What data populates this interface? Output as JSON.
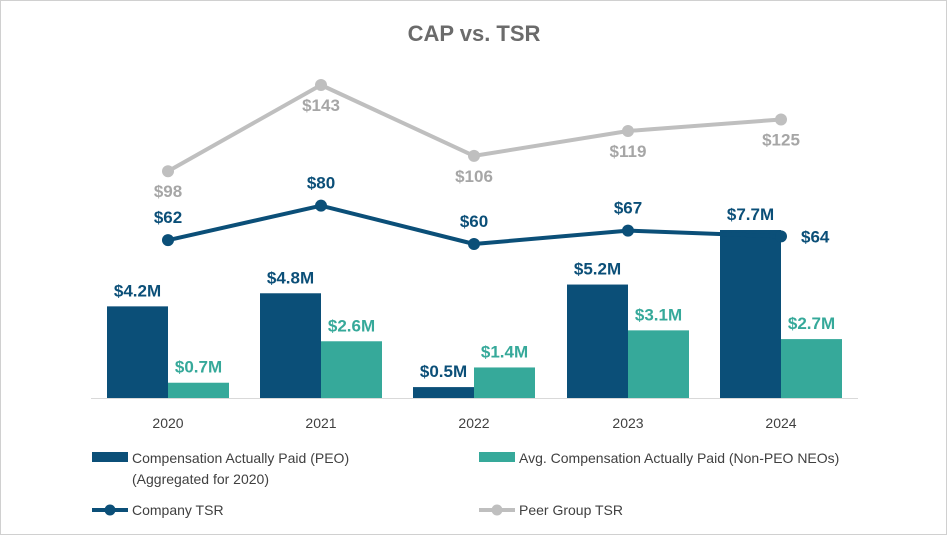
{
  "chart_data": {
    "type": "bar",
    "title": "CAP vs. TSR",
    "categories": [
      "2020",
      "2021",
      "2022",
      "2023",
      "2024"
    ],
    "series": [
      {
        "name": "Compensation Actually Paid (PEO)",
        "name_line2": "(Aggregated for 2020)",
        "kind": "bar",
        "color": "#0b4f78",
        "values": [
          4.2,
          4.8,
          0.5,
          5.2,
          7.7
        ],
        "labels": [
          "$4.2M",
          "$4.8M",
          "$0.5M",
          "$5.2M",
          "$7.7M"
        ]
      },
      {
        "name": "Avg. Compensation Actually Paid (Non-PEO NEOs)",
        "kind": "bar",
        "color": "#36a99a",
        "values": [
          0.7,
          2.6,
          1.4,
          3.1,
          2.7
        ],
        "labels": [
          "$0.7M",
          "$2.6M",
          "$1.4M",
          "$3.1M",
          "$2.7M"
        ]
      },
      {
        "name": "Company TSR",
        "kind": "line",
        "color": "#0b4f78",
        "values": [
          62,
          80,
          60,
          67,
          64
        ],
        "labels": [
          "$62",
          "$80",
          "$60",
          "$67",
          "$64"
        ]
      },
      {
        "name": "Peer Group TSR",
        "kind": "line",
        "color": "#bfbfbf",
        "label_color": "#a6a6a6",
        "values": [
          98,
          143,
          106,
          119,
          125
        ],
        "labels": [
          "$98",
          "$143",
          "$106",
          "$119",
          "$125"
        ]
      }
    ],
    "bar_axis": {
      "unit": "$M",
      "ylim": [
        0,
        8
      ]
    },
    "line_axis": {
      "unit": "$",
      "ylim": [
        0,
        160
      ]
    },
    "gridlines": false,
    "legend_position": "bottom"
  }
}
